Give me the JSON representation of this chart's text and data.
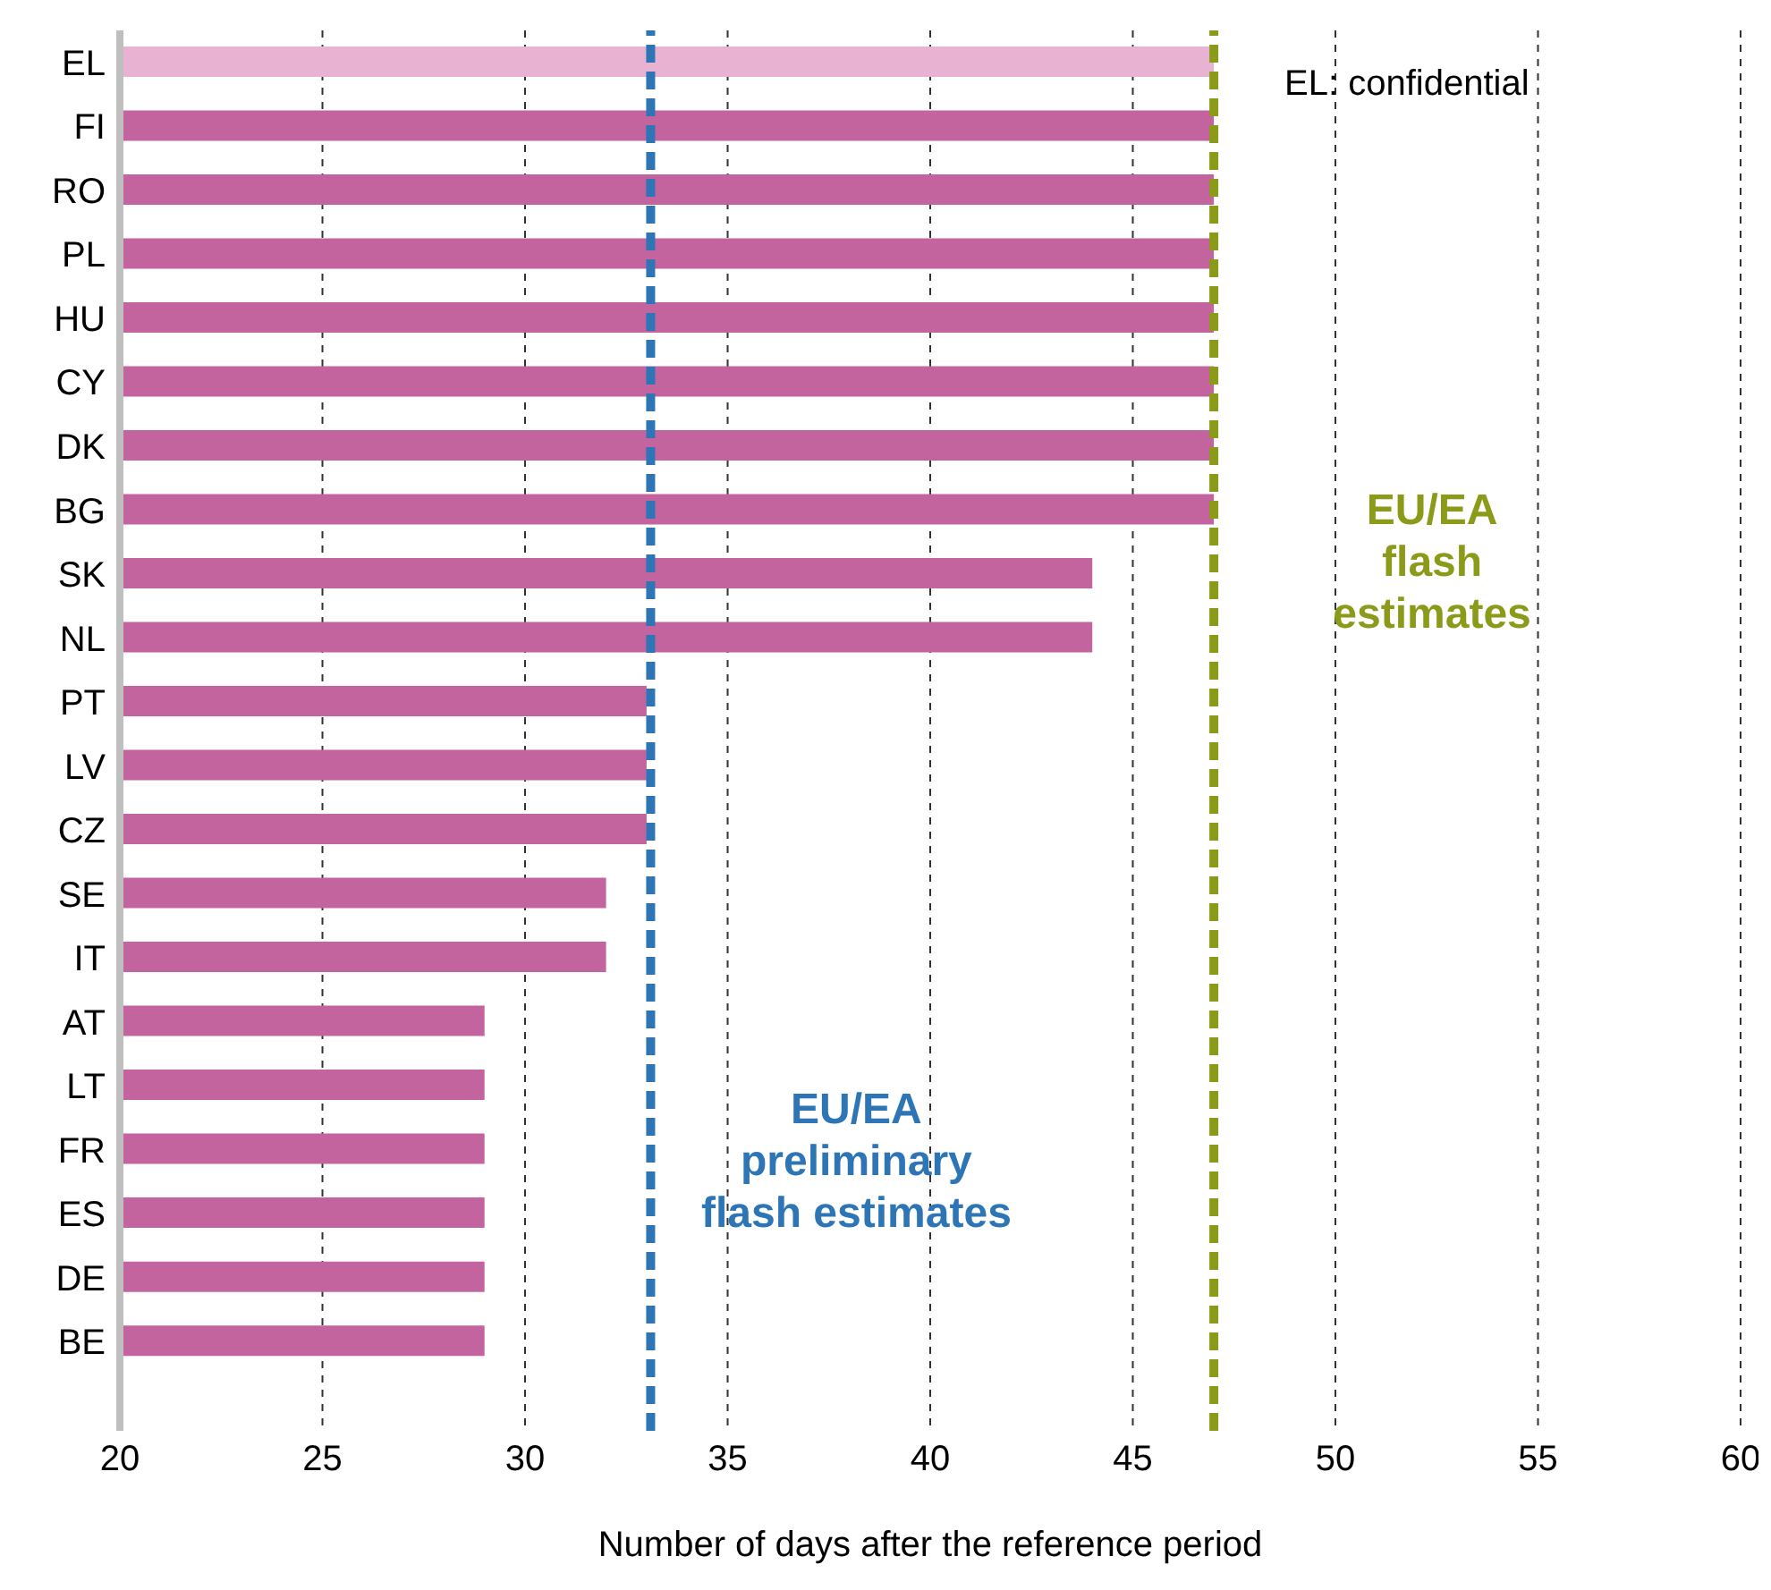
{
  "chart_data": {
    "type": "bar",
    "orientation": "horizontal",
    "xlabel": "Number  of days after the reference period",
    "categories": [
      "EL",
      "FI",
      "RO",
      "PL",
      "HU",
      "CY",
      "DK",
      "BG",
      "SK",
      "NL",
      "PT",
      "LV",
      "CZ",
      "SE",
      "IT",
      "AT",
      "LT",
      "FR",
      "ES",
      "DE",
      "BE"
    ],
    "values": [
      47,
      47,
      47,
      47,
      47,
      47,
      47,
      47,
      44,
      44,
      33,
      33,
      33,
      32,
      32,
      29,
      29,
      29,
      29,
      29,
      29
    ],
    "colors": [
      "#e8b2d3",
      "#c4649f",
      "#c4649f",
      "#c4649f",
      "#c4649f",
      "#c4649f",
      "#c4649f",
      "#c4649f",
      "#c4649f",
      "#c4649f",
      "#c4649f",
      "#c4649f",
      "#c4649f",
      "#c4649f",
      "#c4649f",
      "#c4649f",
      "#c4649f",
      "#c4649f",
      "#c4649f",
      "#c4649f",
      "#c4649f"
    ],
    "xlim": [
      20,
      60
    ],
    "xticks": [
      20,
      25,
      30,
      35,
      40,
      45,
      50,
      55,
      60
    ],
    "grid": "x",
    "ref_lines": [
      {
        "axis": "x",
        "value": 33.1,
        "label": "EU/EA preliminary flash estimates",
        "color": "#2e75b6",
        "line_style": "dashed"
      },
      {
        "axis": "x",
        "value": 47,
        "label": "EU/EA flash estimates",
        "color": "#8c9a1a",
        "line_style": "dashed"
      }
    ],
    "annotations": [
      "EL: confidential"
    ]
  }
}
